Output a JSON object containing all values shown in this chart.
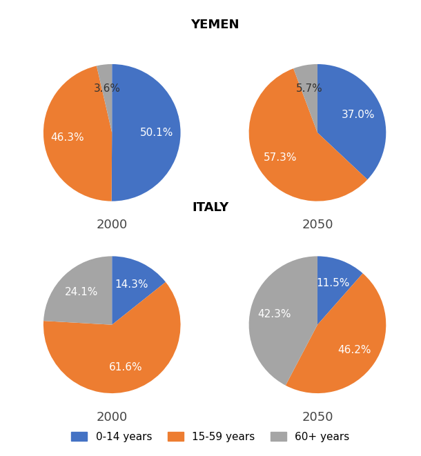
{
  "title_yemen": "YEMEN",
  "title_italy": "ITALY",
  "colors": {
    "0-14 years": "#4472C4",
    "15-59 years": "#ED7D31",
    "60+ years": "#A5A5A5"
  },
  "yemen_2000": {
    "values": [
      50.1,
      46.3,
      3.6
    ],
    "labels": [
      "50.1%",
      "46.3%",
      "3.6%"
    ],
    "year": "2000"
  },
  "yemen_2050": {
    "values": [
      37.0,
      57.3,
      5.7
    ],
    "labels": [
      "37.0%",
      "57.3%",
      "5.7%"
    ],
    "year": "2050"
  },
  "italy_2000": {
    "values": [
      14.3,
      61.6,
      24.1
    ],
    "labels": [
      "14.3%",
      "61.6%",
      "24.1%"
    ],
    "year": "2000"
  },
  "italy_2050": {
    "values": [
      11.5,
      46.2,
      42.3
    ],
    "labels": [
      "11.5%",
      "46.2%",
      "42.3%"
    ],
    "year": "2050"
  },
  "legend_labels": [
    "0-14 years",
    "15-59 years",
    "60+ years"
  ],
  "background_color": "#FFFFFF",
  "label_fontsize": 11,
  "year_fontsize": 13,
  "title_fontsize": 13
}
